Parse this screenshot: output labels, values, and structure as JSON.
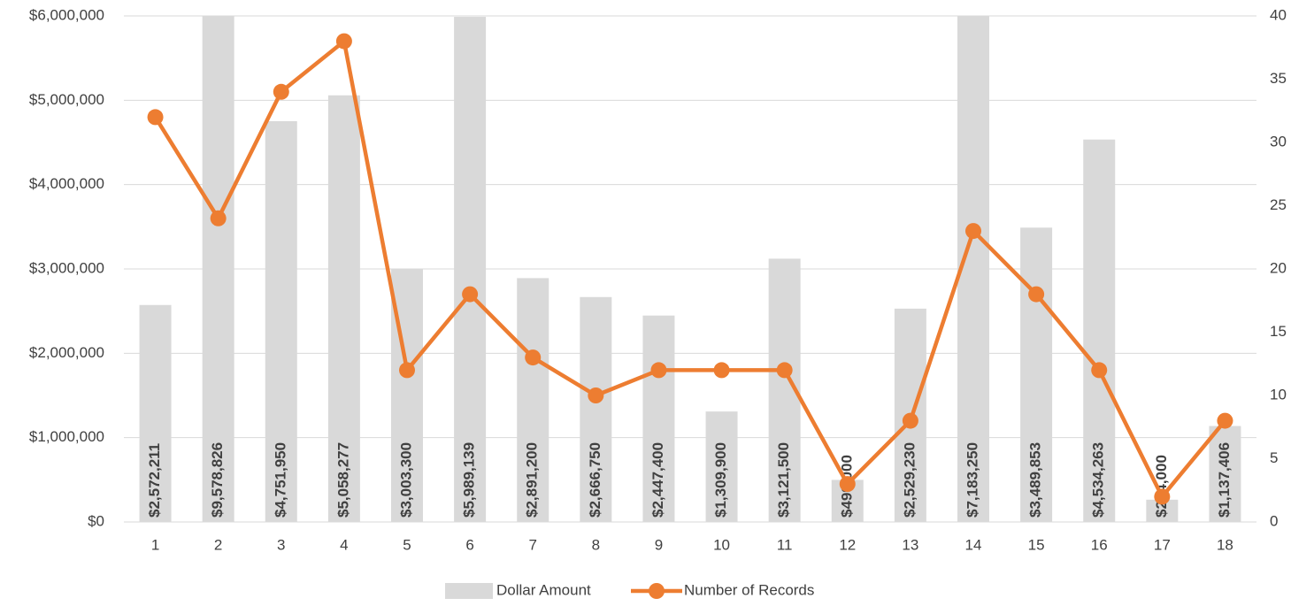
{
  "chart_data": {
    "type": "combo",
    "categories": [
      1,
      2,
      3,
      4,
      5,
      6,
      7,
      8,
      9,
      10,
      11,
      12,
      13,
      14,
      15,
      16,
      17,
      18
    ],
    "series": [
      {
        "name": "Dollar Amount",
        "type": "bar",
        "color": "#d9d9d9",
        "values": [
          2572211,
          9578826,
          4751950,
          5058277,
          3003300,
          5989139,
          2891200,
          2666750,
          2447400,
          1309900,
          3121500,
          499000,
          2529230,
          7183250,
          3489853,
          4534263,
          264000,
          1137406
        ],
        "value_labels": [
          "$2,572,211",
          "$9,578,826",
          "$4,751,950",
          "$5,058,277",
          "$3,003,300",
          "$5,989,139",
          "$2,891,200",
          "$2,666,750",
          "$2,447,400",
          "$1,309,900",
          "$3,121,500",
          "$499,000",
          "$2,529,230",
          "$7,183,250",
          "$3,489,853",
          "$4,534,263",
          "$264,000",
          "$1,137,406"
        ]
      },
      {
        "name": "Number of Records",
        "type": "line",
        "axis": "y2",
        "color": "#ed7d31",
        "values": [
          32,
          24,
          34,
          38,
          12,
          18,
          13,
          10,
          12,
          12,
          12,
          3,
          8,
          23,
          18,
          12,
          2,
          8
        ]
      }
    ],
    "ylim": [
      0,
      6000000
    ],
    "yticks": [
      {
        "value": 0,
        "label": "$0"
      },
      {
        "value": 1000000,
        "label": "$1,000,000"
      },
      {
        "value": 2000000,
        "label": "$2,000,000"
      },
      {
        "value": 3000000,
        "label": "$3,000,000"
      },
      {
        "value": 4000000,
        "label": "$4,000,000"
      },
      {
        "value": 5000000,
        "label": "$5,000,000"
      },
      {
        "value": 6000000,
        "label": "$6,000,000"
      }
    ],
    "y2lim": [
      0,
      40
    ],
    "y2ticks": [
      0,
      5,
      10,
      15,
      20,
      25,
      30,
      35,
      40
    ],
    "grid": true,
    "legend": "bottom"
  }
}
